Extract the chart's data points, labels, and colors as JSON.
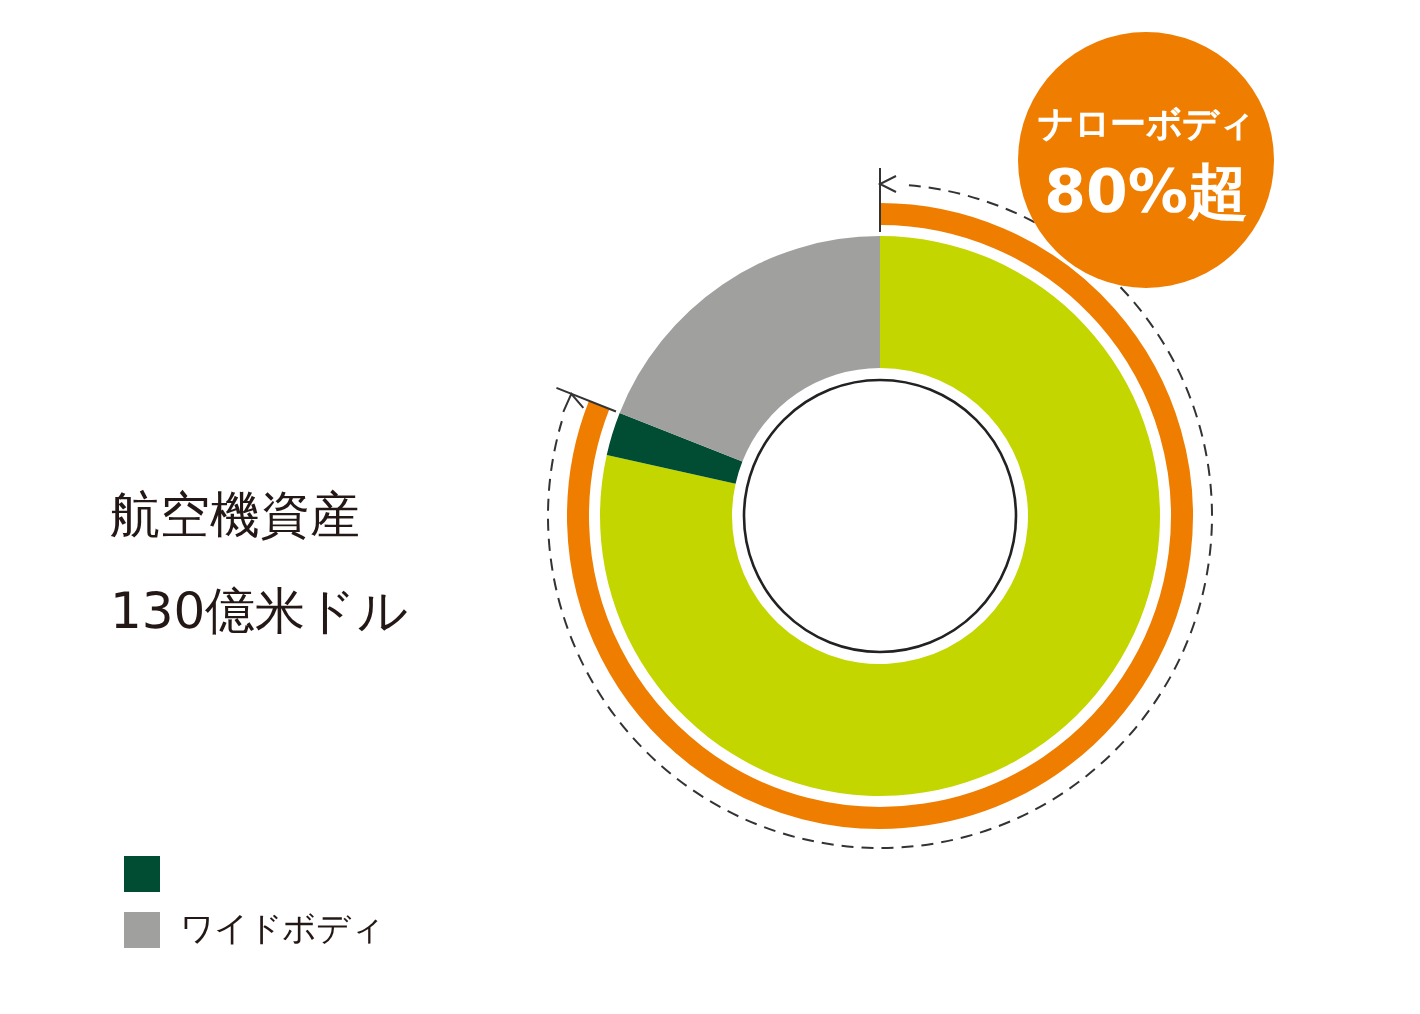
{
  "chart_data": {
    "type": "donut",
    "title": "航空機資産",
    "subtitle": "130億米ドル",
    "categories": [
      "ナローボディ",
      null,
      "ワイドボディ"
    ],
    "values": [
      78.5,
      2.5,
      19
    ],
    "colors": [
      "#c3d600",
      "#004d33",
      "#a0a19f"
    ],
    "annotations": [
      "80%超"
    ],
    "legend": "bottom left"
  }
}
